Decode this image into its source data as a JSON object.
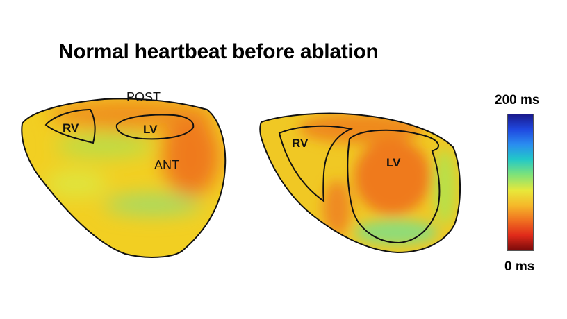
{
  "title": "Normal heartbeat before ablation",
  "left_view": {
    "orientation_label": "POST",
    "rv_label": "RV",
    "lv_label": "LV",
    "ant_label": "ANT"
  },
  "right_view": {
    "rv_label": "RV",
    "lv_label": "LV"
  },
  "color_scale": {
    "max_label": "200 ms",
    "min_label": "0 ms",
    "colors": [
      "#1a1a8c",
      "#1f48e0",
      "#2a8cf0",
      "#22c8c8",
      "#7be27b",
      "#e8e83a",
      "#f5b82a",
      "#f07020",
      "#e02a1a",
      "#7a0a0a"
    ]
  }
}
